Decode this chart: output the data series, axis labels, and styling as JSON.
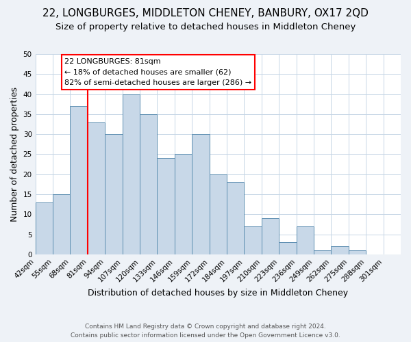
{
  "title": "22, LONGBURGES, MIDDLETON CHENEY, BANBURY, OX17 2QD",
  "subtitle": "Size of property relative to detached houses in Middleton Cheney",
  "xlabel": "Distribution of detached houses by size in Middleton Cheney",
  "ylabel": "Number of detached properties",
  "footer_line1": "Contains HM Land Registry data © Crown copyright and database right 2024.",
  "footer_line2": "Contains public sector information licensed under the Open Government Licence v3.0.",
  "bin_labels": [
    "42sqm",
    "55sqm",
    "68sqm",
    "81sqm",
    "94sqm",
    "107sqm",
    "120sqm",
    "133sqm",
    "146sqm",
    "159sqm",
    "172sqm",
    "184sqm",
    "197sqm",
    "210sqm",
    "223sqm",
    "236sqm",
    "249sqm",
    "262sqm",
    "275sqm",
    "288sqm",
    "301sqm"
  ],
  "bar_heights": [
    13,
    15,
    37,
    33,
    30,
    40,
    35,
    24,
    25,
    30,
    20,
    18,
    7,
    9,
    3,
    7,
    1,
    2,
    1,
    0,
    0
  ],
  "bar_color": "#c8d8e8",
  "bar_edge_color": "#5b8db0",
  "vline_color": "red",
  "annotation_title": "22 LONGBURGES: 81sqm",
  "annotation_line1": "← 18% of detached houses are smaller (62)",
  "annotation_line2": "82% of semi-detached houses are larger (286) →",
  "annotation_box_color": "white",
  "annotation_box_edge_color": "red",
  "ylim": [
    0,
    50
  ],
  "yticks": [
    0,
    5,
    10,
    15,
    20,
    25,
    30,
    35,
    40,
    45,
    50
  ],
  "background_color": "#eef2f7",
  "plot_background_color": "white",
  "grid_color": "#c5d5e5",
  "title_fontsize": 11,
  "subtitle_fontsize": 9.5,
  "axis_label_fontsize": 9,
  "tick_fontsize": 7.5,
  "footer_fontsize": 6.5
}
